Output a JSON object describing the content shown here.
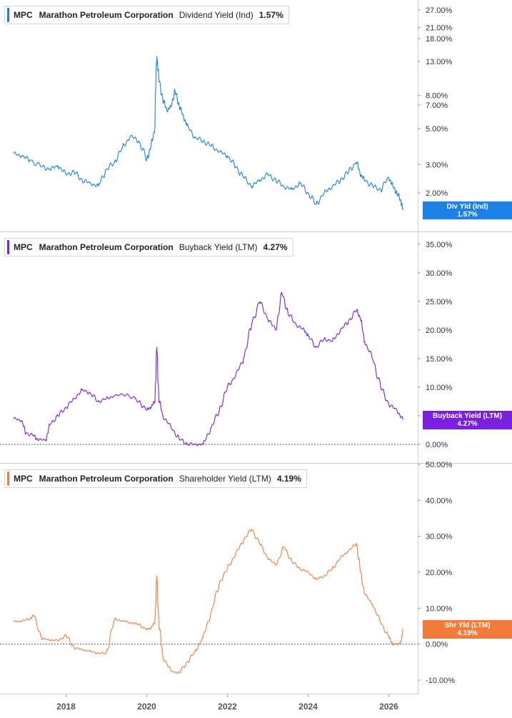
{
  "ticker": "MPC",
  "company": "Marathon Petroleum Corporation",
  "panels": [
    {
      "metric": "Dividend Yield (Ind)",
      "value": "1.57%",
      "tag_label": "Div Yld (Ind)",
      "color": "#1a82e6"
    },
    {
      "metric": "Buyback Yield (LTM)",
      "value": "4.27%",
      "tag_label": "Buyback Yield (LTM)",
      "color": "#7a1fe0"
    },
    {
      "metric": "Shareholder Yield (LTM)",
      "value": "4.19%",
      "tag_label": "Shr Yld (LTM)",
      "color": "#f07c3a"
    }
  ],
  "chart_data": [
    {
      "type": "line",
      "scale": "log",
      "ylim": [
        1.35,
        30
      ],
      "y_ticks": [
        "27.00%",
        "21.00%",
        "18.00%",
        "13.00%",
        "8.00%",
        "7.00%",
        "5.00%",
        "3.00%",
        "2.00%"
      ],
      "x_ticks": [
        "2018",
        "2020",
        "2022",
        "2024",
        "2026"
      ],
      "series": [
        {
          "name": "Div Yld (Ind)",
          "x": [
            2016.7,
            2016.9,
            2017.1,
            2017.4,
            2017.6,
            2017.8,
            2018.0,
            2018.2,
            2018.4,
            2018.6,
            2018.8,
            2019.0,
            2019.2,
            2019.4,
            2019.6,
            2019.8,
            2020.0,
            2020.1,
            2020.2,
            2020.25,
            2020.3,
            2020.4,
            2020.5,
            2020.6,
            2020.7,
            2020.8,
            2020.9,
            2021.0,
            2021.2,
            2021.4,
            2021.6,
            2021.8,
            2022.0,
            2022.2,
            2022.4,
            2022.6,
            2022.8,
            2023.0,
            2023.2,
            2023.4,
            2023.6,
            2023.8,
            2024.0,
            2024.2,
            2024.4,
            2024.6,
            2024.8,
            2025.0,
            2025.2,
            2025.3,
            2025.4,
            2025.6,
            2025.8,
            2026.0,
            2026.1,
            2026.2,
            2026.3,
            2026.35
          ],
          "y": [
            3.5,
            3.4,
            3.2,
            2.9,
            2.8,
            2.95,
            2.6,
            2.7,
            2.4,
            2.3,
            2.2,
            2.8,
            3.1,
            3.8,
            4.5,
            4.2,
            3.2,
            3.8,
            5.0,
            14.0,
            10.0,
            7.5,
            6.5,
            6.8,
            8.5,
            7.0,
            6.0,
            5.2,
            4.4,
            4.2,
            3.9,
            3.6,
            3.4,
            2.9,
            2.5,
            2.2,
            2.4,
            2.6,
            2.4,
            2.2,
            2.1,
            2.3,
            2.0,
            1.7,
            2.0,
            2.2,
            2.4,
            2.7,
            3.1,
            2.6,
            2.4,
            2.2,
            2.1,
            2.5,
            2.2,
            2.0,
            1.8,
            1.57
          ]
        }
      ]
    },
    {
      "type": "line",
      "scale": "linear",
      "ylim": [
        -2,
        37
      ],
      "y_ticks": [
        "35.00%",
        "30.00%",
        "25.00%",
        "20.00%",
        "15.00%",
        "10.00%",
        "5.00%",
        "0.00%"
      ],
      "x_ticks": [
        "2018",
        "2020",
        "2022",
        "2024",
        "2026"
      ],
      "series": [
        {
          "name": "Buyback Yield (LTM)",
          "x": [
            2016.7,
            2016.9,
            2017.0,
            2017.2,
            2017.3,
            2017.5,
            2017.6,
            2017.8,
            2018.0,
            2018.2,
            2018.4,
            2018.6,
            2018.8,
            2019.0,
            2019.2,
            2019.5,
            2019.8,
            2020.0,
            2020.1,
            2020.2,
            2020.25,
            2020.3,
            2020.4,
            2020.6,
            2020.8,
            2021.0,
            2021.2,
            2021.4,
            2021.6,
            2021.8,
            2022.0,
            2022.2,
            2022.4,
            2022.6,
            2022.8,
            2023.0,
            2023.2,
            2023.35,
            2023.5,
            2023.7,
            2023.9,
            2024.0,
            2024.2,
            2024.4,
            2024.6,
            2024.8,
            2025.0,
            2025.2,
            2025.3,
            2025.4,
            2025.6,
            2025.8,
            2026.0,
            2026.2,
            2026.35
          ],
          "y": [
            4.5,
            4.2,
            2.0,
            1.5,
            0.8,
            0.8,
            3.5,
            5.0,
            6.5,
            8.0,
            9.5,
            9.0,
            7.5,
            8.0,
            8.5,
            8.8,
            7.5,
            6.0,
            6.5,
            7.5,
            17.0,
            8.0,
            5.0,
            3.0,
            1.0,
            0.1,
            0.0,
            0.0,
            3.0,
            6.0,
            10.0,
            12.0,
            15.0,
            21.0,
            25.0,
            22.0,
            20.0,
            26.5,
            23.0,
            21.0,
            20.0,
            19.0,
            17.0,
            18.5,
            18.0,
            20.0,
            21.5,
            23.5,
            22.0,
            18.0,
            15.0,
            10.0,
            7.0,
            6.0,
            4.27
          ]
        }
      ]
    },
    {
      "type": "line",
      "scale": "linear",
      "ylim": [
        -12,
        52
      ],
      "y_ticks": [
        "50.00%",
        "40.00%",
        "30.00%",
        "20.00%",
        "10.00%",
        "0.00%",
        "-10.00%"
      ],
      "x_ticks": [
        "2018",
        "2020",
        "2022",
        "2024",
        "2026"
      ],
      "series": [
        {
          "name": "Shr Yld (LTM)",
          "x": [
            2016.7,
            2016.9,
            2017.1,
            2017.2,
            2017.4,
            2017.6,
            2017.8,
            2018.0,
            2018.2,
            2018.4,
            2018.6,
            2018.8,
            2019.0,
            2019.2,
            2019.4,
            2019.6,
            2019.8,
            2020.0,
            2020.1,
            2020.2,
            2020.25,
            2020.3,
            2020.4,
            2020.6,
            2020.8,
            2021.0,
            2021.2,
            2021.4,
            2021.6,
            2021.8,
            2022.0,
            2022.2,
            2022.4,
            2022.6,
            2022.8,
            2023.0,
            2023.2,
            2023.4,
            2023.6,
            2023.8,
            2024.0,
            2024.2,
            2024.4,
            2024.6,
            2024.8,
            2025.0,
            2025.2,
            2025.3,
            2025.4,
            2025.6,
            2025.8,
            2026.0,
            2026.1,
            2026.2,
            2026.3,
            2026.35
          ],
          "y": [
            6.2,
            6.5,
            7.0,
            8.0,
            1.5,
            1.2,
            1.0,
            2.5,
            -1.0,
            -1.5,
            -2.0,
            -2.5,
            -2.5,
            7.0,
            6.5,
            6.0,
            5.5,
            4.0,
            4.5,
            6.0,
            19.0,
            6.0,
            -3.5,
            -7.5,
            -8.0,
            -5.0,
            -2.0,
            2.0,
            9.0,
            17.0,
            21.0,
            25.0,
            29.0,
            32.0,
            28.0,
            24.0,
            22.0,
            27.0,
            23.0,
            21.0,
            20.0,
            18.0,
            19.0,
            21.0,
            24.0,
            26.0,
            28.0,
            20.0,
            14.0,
            11.0,
            6.0,
            2.0,
            0.0,
            0.0,
            0.5,
            4.19
          ]
        }
      ]
    }
  ]
}
